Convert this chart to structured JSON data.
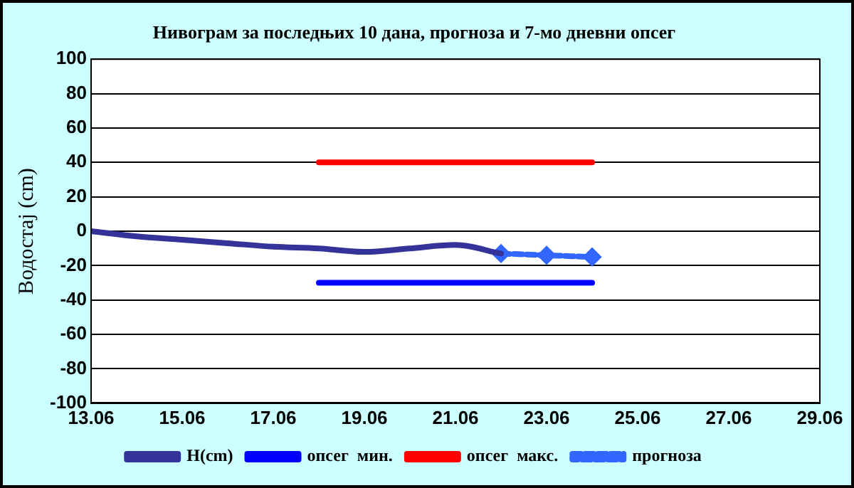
{
  "chart_data": {
    "type": "line",
    "title": "Нивограм за последњих 10 дана, прогноза и 7-мо дневни опсег",
    "ylabel": "Водостај (cm)",
    "xlim": [
      "--06-13",
      "--06-29"
    ],
    "xticks": [
      {
        "value": "--06-13",
        "label": "13.06"
      },
      {
        "value": "--06-15",
        "label": "15.06"
      },
      {
        "value": "--06-17",
        "label": "17.06"
      },
      {
        "value": "--06-19",
        "label": "19.06"
      },
      {
        "value": "--06-21",
        "label": "21.06"
      },
      {
        "value": "--06-23",
        "label": "23.06"
      },
      {
        "value": "--06-25",
        "label": "25.06"
      },
      {
        "value": "--06-27",
        "label": "27.06"
      },
      {
        "value": "--06-29",
        "label": "29.06"
      }
    ],
    "ylim": [
      -100,
      100
    ],
    "yticks": [
      -100,
      -80,
      -60,
      -40,
      -20,
      0,
      20,
      40,
      60,
      80,
      100
    ],
    "grid": "y",
    "legend": "bottom",
    "series": [
      {
        "name": "H(cm)",
        "color": "#333399",
        "marker": "none",
        "x": [
          "--06-13",
          "--06-14",
          "--06-15",
          "--06-16",
          "--06-17",
          "--06-18",
          "--06-19",
          "--06-20",
          "--06-21",
          "--06-22"
        ],
        "values": [
          0,
          -3,
          -5,
          -7,
          -9,
          -10,
          -12,
          -10,
          -8,
          -13
        ]
      },
      {
        "name": "опсег  мин.",
        "color": "#0000ff",
        "marker": "none",
        "x": [
          "--06-18",
          "--06-24"
        ],
        "values": [
          -30,
          -30
        ]
      },
      {
        "name": "опсег  макс.",
        "color": "#ff0000",
        "marker": "none",
        "x": [
          "--06-18",
          "--06-24"
        ],
        "values": [
          40,
          40
        ]
      },
      {
        "name": "прогноза",
        "color": "#3366ff",
        "marker": "diamond",
        "line_style": "dashed",
        "x": [
          "--06-22",
          "--06-23",
          "--06-24"
        ],
        "values": [
          -13,
          -14,
          -15
        ]
      }
    ]
  }
}
